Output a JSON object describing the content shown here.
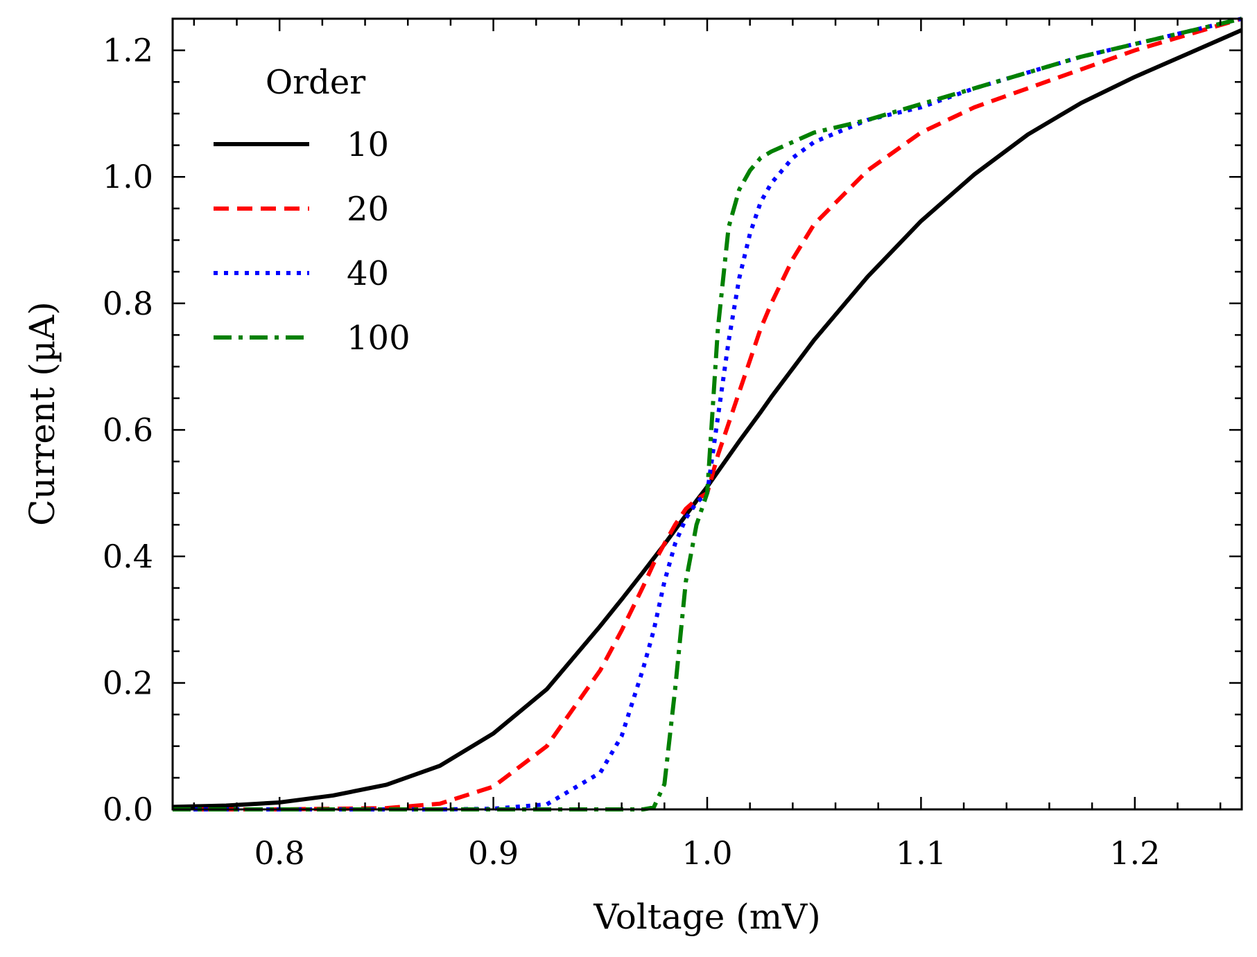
{
  "chart_data": {
    "type": "line",
    "title": "",
    "xlabel": "Voltage (mV)",
    "ylabel": "Current (µA)",
    "xlim": [
      0.75,
      1.25
    ],
    "ylim": [
      0.0,
      1.25
    ],
    "xticks": [
      0.8,
      0.9,
      1.0,
      1.1,
      1.2
    ],
    "xtick_labels": [
      "0.8",
      "0.9",
      "1.0",
      "1.1",
      "1.2"
    ],
    "yticks": [
      0.0,
      0.2,
      0.4,
      0.6,
      0.8,
      1.0,
      1.2
    ],
    "ytick_labels": [
      "0.0",
      "0.2",
      "0.4",
      "0.6",
      "0.8",
      "1.0",
      "1.2"
    ],
    "grid": false,
    "legend": {
      "title": "Order",
      "placement": "top-left"
    },
    "x": [
      0.75,
      0.775,
      0.8,
      0.825,
      0.85,
      0.875,
      0.9,
      0.925,
      0.95,
      0.96,
      0.97,
      0.975,
      0.98,
      0.985,
      0.99,
      0.995,
      1.0,
      1.005,
      1.01,
      1.015,
      1.02,
      1.025,
      1.03,
      1.04,
      1.05,
      1.075,
      1.1,
      1.125,
      1.15,
      1.175,
      1.2,
      1.225,
      1.25
    ],
    "series": [
      {
        "name": "10",
        "color": "#000000",
        "dash": "solid",
        "values": [
          0.004,
          0.006,
          0.011,
          0.022,
          0.039,
          0.069,
          0.12,
          0.19,
          0.29,
          0.332,
          0.375,
          0.397,
          0.419,
          0.442,
          0.465,
          0.488,
          0.51,
          0.534,
          0.558,
          0.582,
          0.605,
          0.628,
          0.652,
          0.697,
          0.742,
          0.842,
          0.93,
          1.004,
          1.067,
          1.117,
          1.158,
          1.195,
          1.232
        ]
      },
      {
        "name": "20",
        "color": "#ff0000",
        "dash": "dashed",
        "values": [
          0.0,
          0.0,
          0.0,
          0.001,
          0.002,
          0.009,
          0.036,
          0.1,
          0.22,
          0.283,
          0.352,
          0.389,
          0.42,
          0.45,
          0.475,
          0.49,
          0.5,
          0.56,
          0.61,
          0.66,
          0.71,
          0.76,
          0.8,
          0.87,
          0.925,
          1.01,
          1.07,
          1.11,
          1.14,
          1.17,
          1.2,
          1.225,
          1.25
        ]
      },
      {
        "name": "40",
        "color": "#0000ff",
        "dash": "dotted",
        "values": [
          0.0,
          0.0,
          0.0,
          0.0,
          0.0,
          0.0,
          0.001,
          0.008,
          0.058,
          0.116,
          0.222,
          0.283,
          0.36,
          0.42,
          0.46,
          0.485,
          0.5,
          0.62,
          0.74,
          0.84,
          0.91,
          0.96,
          0.99,
          1.03,
          1.055,
          1.09,
          1.11,
          1.14,
          1.165,
          1.19,
          1.21,
          1.23,
          1.25
        ]
      },
      {
        "name": "100",
        "color": "#008000",
        "dash": "dashdot",
        "values": [
          0.0,
          0.0,
          0.0,
          0.0,
          0.0,
          0.0,
          0.0,
          0.0,
          0.0,
          0.0,
          0.0,
          0.003,
          0.04,
          0.19,
          0.36,
          0.45,
          0.5,
          0.76,
          0.92,
          0.98,
          1.01,
          1.03,
          1.04,
          1.055,
          1.07,
          1.09,
          1.115,
          1.14,
          1.165,
          1.19,
          1.21,
          1.23,
          1.25
        ]
      }
    ]
  }
}
